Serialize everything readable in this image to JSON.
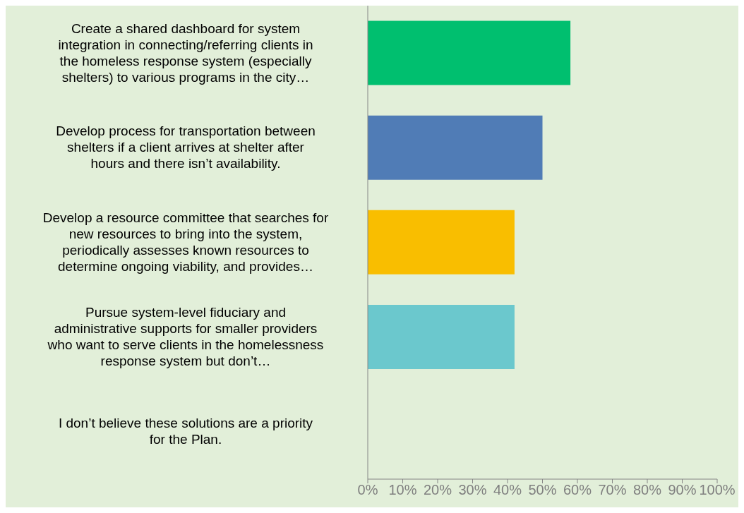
{
  "chart_data": {
    "type": "bar",
    "orientation": "horizontal",
    "categories": [
      "Create a shared dashboard for system integration in connecting/referring clients in the homeless response system (especially shelters) to various programs in the city…",
      "Develop process for transportation between shelters if a client arrives at shelter after hours and there isn’t availability.",
      "Develop a resource committee that searches for new resources to bring into the system, periodically assesses known resources to determine ongoing viability, and provides…",
      "Pursue system-level fiduciary and administrative supports for smaller providers who want to serve clients in the homelessness response system but don’t…",
      "I don’t believe these solutions are a priority for the Plan."
    ],
    "values": [
      58,
      50,
      42,
      42,
      0
    ],
    "colors": [
      "#00bf6f",
      "#507cb6",
      "#f9be00",
      "#6bc8cd",
      "#6bc8cd"
    ],
    "xlim": [
      0,
      100
    ],
    "xticks": [
      {
        "value": 0,
        "label": "0%"
      },
      {
        "value": 10,
        "label": "10%"
      },
      {
        "value": 20,
        "label": "20%"
      },
      {
        "value": 30,
        "label": "30%"
      },
      {
        "value": 40,
        "label": "40%"
      },
      {
        "value": 50,
        "label": "50%"
      },
      {
        "value": 60,
        "label": "60%"
      },
      {
        "value": 70,
        "label": "70%"
      },
      {
        "value": 80,
        "label": "80%"
      },
      {
        "value": 90,
        "label": "90%"
      },
      {
        "value": 100,
        "label": "100%"
      }
    ],
    "grid": false,
    "legend": false
  }
}
